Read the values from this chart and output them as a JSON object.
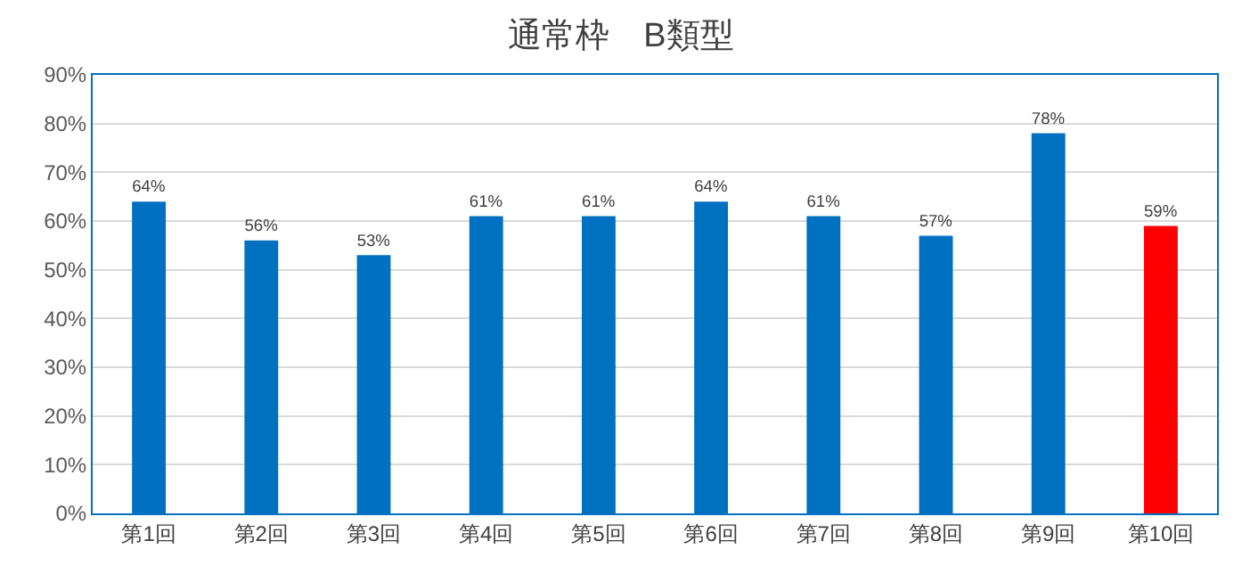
{
  "chart_data": {
    "type": "bar",
    "title": "通常枠　B類型",
    "categories": [
      "第1回",
      "第2回",
      "第3回",
      "第4回",
      "第5回",
      "第6回",
      "第7回",
      "第8回",
      "第9回",
      "第10回"
    ],
    "values": [
      64,
      56,
      53,
      61,
      61,
      64,
      61,
      57,
      78,
      59
    ],
    "colors": [
      "#0070c0",
      "#0070c0",
      "#0070c0",
      "#0070c0",
      "#0070c0",
      "#0070c0",
      "#0070c0",
      "#0070c0",
      "#0070c0",
      "#ff0000"
    ],
    "value_labels": [
      "64%",
      "56%",
      "53%",
      "61%",
      "61%",
      "64%",
      "61%",
      "57%",
      "78%",
      "59%"
    ],
    "ylim": [
      0,
      90
    ],
    "yticks": [
      {
        "value": 0,
        "label": "0%"
      },
      {
        "value": 10,
        "label": "10%"
      },
      {
        "value": 20,
        "label": "20%"
      },
      {
        "value": 30,
        "label": "30%"
      },
      {
        "value": 40,
        "label": "40%"
      },
      {
        "value": 50,
        "label": "50%"
      },
      {
        "value": 60,
        "label": "60%"
      },
      {
        "value": 70,
        "label": "70%"
      },
      {
        "value": 80,
        "label": "80%"
      },
      {
        "value": 90,
        "label": "90%"
      }
    ],
    "grid": "y",
    "legend": false
  }
}
